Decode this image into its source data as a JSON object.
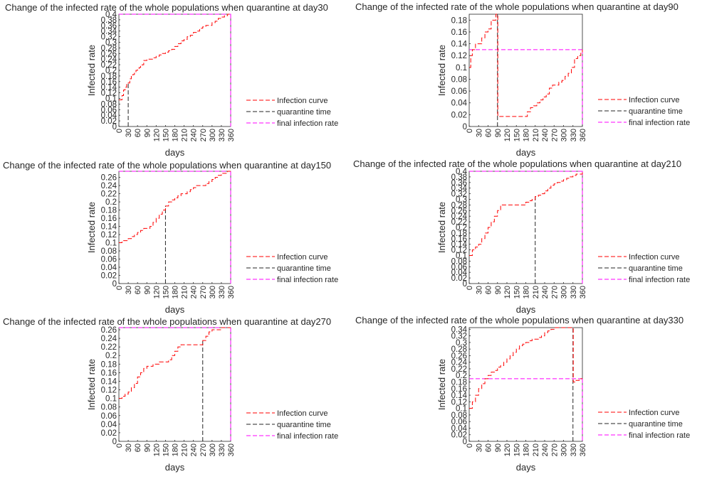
{
  "colors": {
    "infection": "#ff0000",
    "quarantine": "#262626",
    "final": "#ff00ff",
    "axis": "#262626",
    "background": "#ffffff"
  },
  "chart_data": [
    {
      "type": "line",
      "title": "Change of the infected rate of the whole populations when quarantine at day30",
      "xlabel": "days",
      "ylabel": "Infected rate",
      "xlim": [
        0,
        360
      ],
      "ylim": [
        0,
        0.4
      ],
      "xticks": [
        "0",
        "30",
        "60",
        "90",
        "120",
        "150",
        "180",
        "210",
        "240",
        "270",
        "300",
        "330",
        "360"
      ],
      "yticks": [
        "0",
        "0.02",
        "0.04",
        "0.06",
        "0.08",
        "0.1",
        "0.12",
        "0.14",
        "0.16",
        "0.18",
        "0.2",
        "0.22",
        "0.24",
        "0.26",
        "0.28",
        "0.3",
        "0.32",
        "0.34",
        "0.36",
        "0.38",
        "0.4"
      ],
      "legend": [
        "Infection curve",
        "quarantine time",
        "final infection rate"
      ],
      "legend_position": "outside-right",
      "quarantine_day": 30,
      "final_rate": 0.4,
      "series": [
        {
          "name": "Infection curve",
          "x": [
            0,
            10,
            15,
            20,
            25,
            30,
            35,
            40,
            45,
            50,
            55,
            60,
            65,
            70,
            75,
            80,
            90,
            100,
            110,
            120,
            130,
            140,
            150,
            160,
            170,
            180,
            190,
            200,
            210,
            220,
            230,
            240,
            250,
            260,
            270,
            280,
            290,
            300,
            310,
            320,
            330,
            340,
            350,
            360
          ],
          "y": [
            0.095,
            0.11,
            0.13,
            0.14,
            0.15,
            0.155,
            0.17,
            0.18,
            0.185,
            0.19,
            0.2,
            0.205,
            0.21,
            0.215,
            0.22,
            0.235,
            0.24,
            0.24,
            0.245,
            0.25,
            0.255,
            0.26,
            0.265,
            0.27,
            0.275,
            0.285,
            0.295,
            0.305,
            0.31,
            0.32,
            0.325,
            0.335,
            0.34,
            0.35,
            0.355,
            0.36,
            0.36,
            0.37,
            0.375,
            0.385,
            0.39,
            0.395,
            0.4,
            0.4
          ]
        }
      ]
    },
    {
      "type": "line",
      "title": "Change of the infected rate of the whole populations when quarantine at day90",
      "xlabel": "days",
      "ylabel": "Infected rate",
      "xlim": [
        0,
        360
      ],
      "ylim": [
        0,
        0.19
      ],
      "xticks": [
        "0",
        "30",
        "60",
        "90",
        "120",
        "150",
        "180",
        "210",
        "240",
        "270",
        "300",
        "330",
        "360"
      ],
      "yticks": [
        "0",
        "0.02",
        "0.04",
        "0.06",
        "0.08",
        "0.1",
        "0.12",
        "0.14",
        "0.16",
        "0.18"
      ],
      "legend": [
        "Infection curve",
        "quarantine time",
        "final infection rate"
      ],
      "legend_position": "outside-right",
      "quarantine_day": 90,
      "final_rate": 0.13,
      "series": [
        {
          "name": "Infection curve",
          "x": [
            0,
            5,
            10,
            20,
            30,
            40,
            50,
            60,
            70,
            80,
            85,
            90,
            91,
            110,
            130,
            150,
            170,
            185,
            195,
            205,
            215,
            225,
            235,
            245,
            255,
            265,
            275,
            285,
            295,
            305,
            315,
            325,
            335,
            345,
            355,
            360
          ],
          "y": [
            0.1,
            0.12,
            0.13,
            0.14,
            0.14,
            0.15,
            0.16,
            0.165,
            0.18,
            0.18,
            0.19,
            0.19,
            0.017,
            0.017,
            0.017,
            0.017,
            0.017,
            0.025,
            0.032,
            0.035,
            0.04,
            0.045,
            0.05,
            0.055,
            0.065,
            0.07,
            0.07,
            0.075,
            0.078,
            0.085,
            0.09,
            0.1,
            0.115,
            0.12,
            0.125,
            0.13
          ]
        }
      ]
    },
    {
      "type": "line",
      "title": "Change of the infected rate of the whole populations when quarantine at day150",
      "xlabel": "days",
      "ylabel": "Infected rate",
      "xlim": [
        0,
        360
      ],
      "ylim": [
        0,
        0.275
      ],
      "xticks": [
        "0",
        "30",
        "60",
        "90",
        "120",
        "150",
        "180",
        "210",
        "240",
        "270",
        "300",
        "330",
        "360"
      ],
      "yticks": [
        "0",
        "0.02",
        "0.04",
        "0.06",
        "0.08",
        "0.1",
        "0.12",
        "0.14",
        "0.16",
        "0.18",
        "0.2",
        "0.22",
        "0.24",
        "0.26"
      ],
      "legend": [
        "Infection curve",
        "quarantine time",
        "final infection rate"
      ],
      "legend_position": "outside-right",
      "quarantine_day": 150,
      "final_rate": 0.275,
      "series": [
        {
          "name": "Infection curve",
          "x": [
            0,
            10,
            20,
            30,
            40,
            50,
            60,
            70,
            80,
            90,
            100,
            110,
            120,
            130,
            140,
            150,
            160,
            170,
            180,
            190,
            200,
            210,
            220,
            230,
            240,
            250,
            260,
            270,
            280,
            290,
            300,
            310,
            320,
            330,
            340,
            350,
            360
          ],
          "y": [
            0.1,
            0.105,
            0.105,
            0.11,
            0.115,
            0.12,
            0.125,
            0.13,
            0.135,
            0.135,
            0.14,
            0.15,
            0.16,
            0.17,
            0.18,
            0.19,
            0.2,
            0.205,
            0.21,
            0.215,
            0.22,
            0.22,
            0.225,
            0.23,
            0.235,
            0.24,
            0.24,
            0.24,
            0.245,
            0.25,
            0.255,
            0.26,
            0.265,
            0.27,
            0.27,
            0.275,
            0.275
          ]
        }
      ]
    },
    {
      "type": "line",
      "title": "Change of the infected rate of the whole populations when quarantine at day210",
      "xlabel": "days",
      "ylabel": "Infected rate",
      "xlim": [
        0,
        360
      ],
      "ylim": [
        0,
        0.4
      ],
      "xticks": [
        "0",
        "30",
        "60",
        "90",
        "120",
        "150",
        "180",
        "210",
        "240",
        "270",
        "300",
        "330",
        "360"
      ],
      "yticks": [
        "0",
        "0.02",
        "0.04",
        "0.06",
        "0.08",
        "0.1",
        "0.12",
        "0.14",
        "0.16",
        "0.18",
        "0.2",
        "0.22",
        "0.24",
        "0.26",
        "0.28",
        "0.3",
        "0.32",
        "0.34",
        "0.36",
        "0.38",
        "0.4"
      ],
      "legend": [
        "Infection curve",
        "quarantine time",
        "final infection rate"
      ],
      "legend_position": "outside-right",
      "quarantine_day": 210,
      "final_rate": 0.4,
      "series": [
        {
          "name": "Infection curve",
          "x": [
            0,
            10,
            20,
            30,
            40,
            50,
            60,
            70,
            80,
            90,
            100,
            110,
            120,
            130,
            140,
            150,
            160,
            170,
            180,
            190,
            200,
            210,
            220,
            230,
            240,
            250,
            260,
            270,
            280,
            290,
            300,
            310,
            320,
            330,
            340,
            350,
            360
          ],
          "y": [
            0.1,
            0.12,
            0.13,
            0.14,
            0.16,
            0.18,
            0.2,
            0.22,
            0.24,
            0.26,
            0.28,
            0.28,
            0.28,
            0.28,
            0.28,
            0.28,
            0.28,
            0.28,
            0.29,
            0.295,
            0.3,
            0.31,
            0.315,
            0.32,
            0.33,
            0.34,
            0.35,
            0.355,
            0.36,
            0.365,
            0.37,
            0.375,
            0.38,
            0.385,
            0.39,
            0.39,
            0.4
          ]
        }
      ]
    },
    {
      "type": "line",
      "title": "Change of the infected rate of the whole populations when quarantine at day270",
      "xlabel": "days",
      "ylabel": "Infected rate",
      "xlim": [
        0,
        360
      ],
      "ylim": [
        0,
        0.265
      ],
      "xticks": [
        "0",
        "30",
        "60",
        "90",
        "120",
        "150",
        "180",
        "210",
        "240",
        "270",
        "300",
        "330",
        "360"
      ],
      "yticks": [
        "0",
        "0.02",
        "0.04",
        "0.06",
        "0.08",
        "0.1",
        "0.12",
        "0.14",
        "0.16",
        "0.18",
        "0.2",
        "0.22",
        "0.24",
        "0.26"
      ],
      "legend": [
        "Infection curve",
        "quarantine time",
        "final infection rate"
      ],
      "legend_position": "outside-right",
      "quarantine_day": 270,
      "final_rate": 0.265,
      "series": [
        {
          "name": "Infection curve",
          "x": [
            0,
            10,
            20,
            30,
            40,
            50,
            60,
            70,
            80,
            90,
            100,
            110,
            120,
            130,
            140,
            150,
            160,
            170,
            180,
            190,
            200,
            210,
            220,
            230,
            240,
            250,
            260,
            270,
            280,
            290,
            300,
            310,
            320,
            330,
            340,
            350,
            360
          ],
          "y": [
            0.1,
            0.105,
            0.11,
            0.115,
            0.125,
            0.135,
            0.15,
            0.16,
            0.17,
            0.175,
            0.175,
            0.18,
            0.18,
            0.185,
            0.185,
            0.185,
            0.19,
            0.2,
            0.21,
            0.22,
            0.225,
            0.225,
            0.225,
            0.225,
            0.225,
            0.225,
            0.225,
            0.235,
            0.245,
            0.255,
            0.26,
            0.26,
            0.26,
            0.265,
            0.265,
            0.265,
            0.265
          ]
        }
      ]
    },
    {
      "type": "line",
      "title": "Change of the infected rate of the whole populations when quarantine at day330",
      "xlabel": "days",
      "ylabel": "Infected rate",
      "xlim": [
        0,
        360
      ],
      "ylim": [
        0,
        0.345
      ],
      "xticks": [
        "0",
        "30",
        "60",
        "90",
        "120",
        "150",
        "180",
        "210",
        "240",
        "270",
        "300",
        "330",
        "360"
      ],
      "yticks": [
        "0",
        "0.02",
        "0.04",
        "0.06",
        "0.08",
        "0.1",
        "0.12",
        "0.14",
        "0.16",
        "0.18",
        "0.2",
        "0.22",
        "0.24",
        "0.26",
        "0.28",
        "0.3",
        "0.32",
        "0.34"
      ],
      "legend": [
        "Infection curve",
        "quarantine time",
        "final infection rate"
      ],
      "legend_position": "outside-right",
      "quarantine_day": 330,
      "final_rate": 0.19,
      "series": [
        {
          "name": "Infection curve",
          "x": [
            0,
            10,
            20,
            30,
            40,
            50,
            60,
            70,
            80,
            90,
            100,
            110,
            120,
            130,
            140,
            150,
            160,
            170,
            180,
            190,
            200,
            210,
            220,
            230,
            240,
            250,
            260,
            270,
            280,
            290,
            300,
            310,
            320,
            330,
            331,
            340,
            350,
            360
          ],
          "y": [
            0.1,
            0.12,
            0.14,
            0.16,
            0.175,
            0.19,
            0.2,
            0.21,
            0.215,
            0.225,
            0.23,
            0.24,
            0.25,
            0.26,
            0.27,
            0.28,
            0.29,
            0.295,
            0.3,
            0.305,
            0.31,
            0.31,
            0.315,
            0.32,
            0.33,
            0.335,
            0.34,
            0.345,
            0.345,
            0.345,
            0.345,
            0.345,
            0.345,
            0.345,
            0.18,
            0.185,
            0.19,
            0.19
          ]
        }
      ]
    }
  ]
}
